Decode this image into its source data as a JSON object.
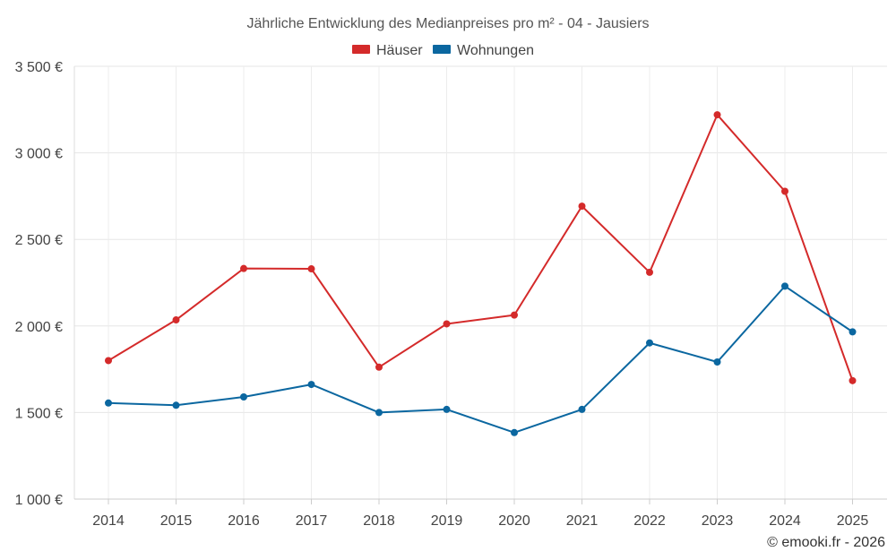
{
  "chart_data": {
    "type": "line",
    "title": "Jährliche Entwicklung des Medianpreises pro m² - 04 - Jausiers",
    "categories": [
      "2014",
      "2015",
      "2016",
      "2017",
      "2018",
      "2019",
      "2020",
      "2021",
      "2022",
      "2023",
      "2024",
      "2025"
    ],
    "series": [
      {
        "name": "Häuser",
        "color": "#d42a2a",
        "values": [
          1800,
          2035,
          2332,
          2330,
          1762,
          2012,
          2063,
          2692,
          2310,
          3220,
          2778,
          1684
        ]
      },
      {
        "name": "Wohnungen",
        "color": "#0b67a0",
        "values": [
          1555,
          1542,
          1590,
          1662,
          1500,
          1518,
          1384,
          1518,
          1902,
          1792,
          2230,
          1966
        ]
      }
    ],
    "ylim": [
      1000,
      3500
    ],
    "yticks": [
      1000,
      1500,
      2000,
      2500,
      3000,
      3500
    ],
    "ytick_labels": [
      "1 000 €",
      "1 500 €",
      "2 000 €",
      "2 500 €",
      "3 000 €",
      "3 500 €"
    ],
    "xlabel": "",
    "ylabel": "",
    "legend_position": "top-center",
    "grid": true
  },
  "credit": "© emooki.fr - 2026"
}
